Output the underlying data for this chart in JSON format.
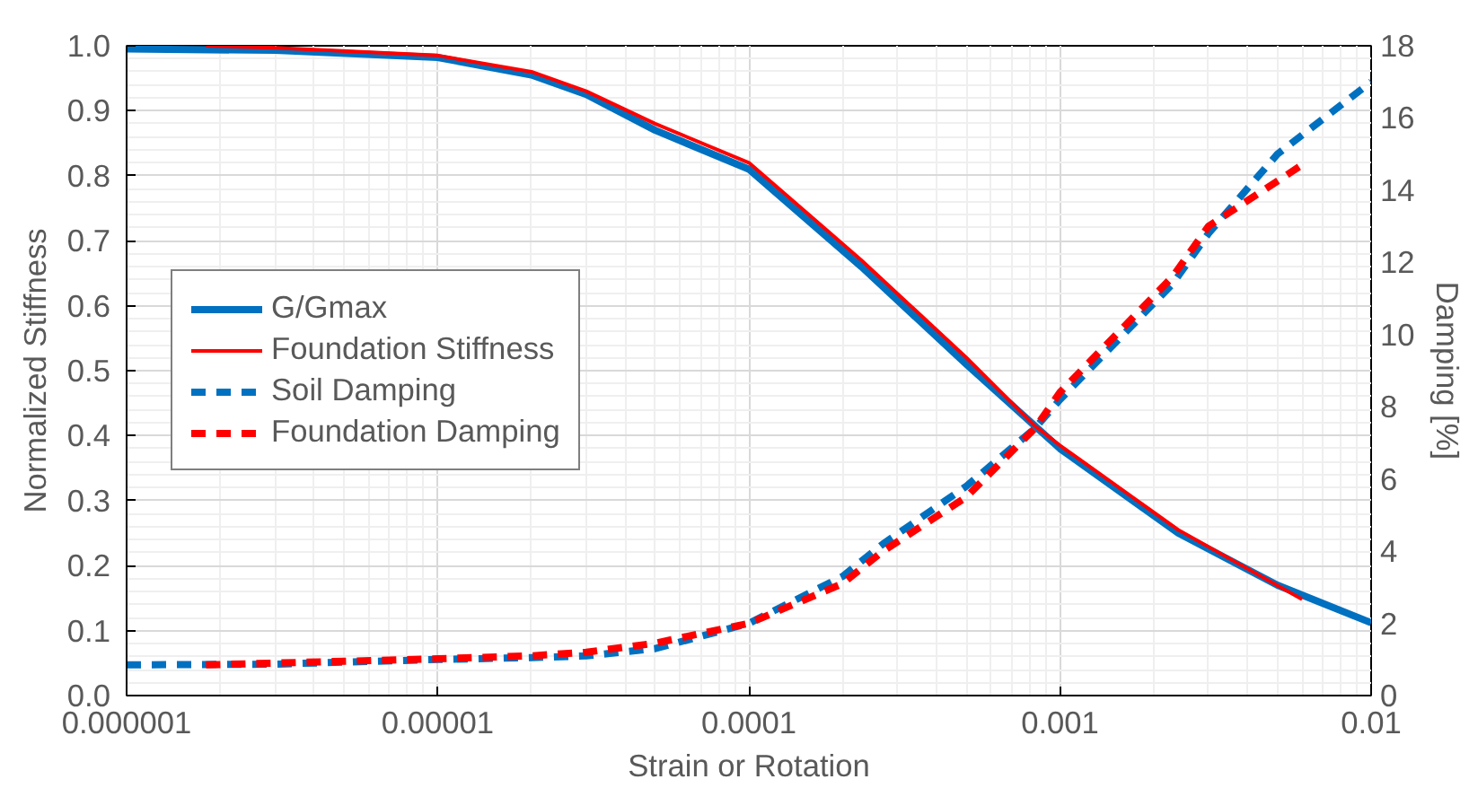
{
  "chart_data": {
    "type": "line",
    "xlabel": "Strain or Rotation",
    "ylabel": "Normalized Stiffness",
    "y2label": "Damping [%]",
    "log": "x",
    "grid": true,
    "legend": "left",
    "marker": "none",
    "xlim": [
      1e-06,
      0.01
    ],
    "xticks": [
      {
        "value": 1e-06,
        "label": "0.000001"
      },
      {
        "value": 1e-05,
        "label": "0.00001"
      },
      {
        "value": 0.0001,
        "label": "0.0001"
      },
      {
        "value": 0.001,
        "label": "0.001"
      },
      {
        "value": 0.01,
        "label": "0.01"
      }
    ],
    "ylim": [
      0,
      1
    ],
    "yticks": [
      {
        "value": 0,
        "label": "0.0"
      },
      0.1,
      0.2,
      0.3,
      0.4,
      0.5,
      0.6,
      0.7,
      0.8,
      0.9,
      {
        "value": 1,
        "label": "1.0"
      }
    ],
    "y2lim": [
      0,
      18
    ],
    "y2ticks": [
      0,
      2,
      4,
      6,
      8,
      10,
      12,
      14,
      16,
      18
    ],
    "series": [
      {
        "name": "G/Gmax",
        "color": "#0070c0",
        "line_style": "solid",
        "x": [
          1e-06,
          3e-06,
          1e-05,
          2e-05,
          3e-05,
          5e-05,
          0.0001,
          0.00023,
          0.0005,
          0.00083,
          0.001,
          0.0024,
          0.005,
          0.01
        ],
        "values": [
          0.995,
          0.993,
          0.982,
          0.955,
          0.925,
          0.87,
          0.81,
          0.66,
          0.51,
          0.415,
          0.38,
          0.25,
          0.17,
          0.112
        ]
      },
      {
        "name": "Foundation Stiffness",
        "color": "#ff0000",
        "line_style": "solid",
        "x": [
          1.8e-06,
          3e-06,
          1e-05,
          2e-05,
          3e-05,
          5e-05,
          0.0001,
          0.00023,
          0.0005,
          0.00083,
          0.001,
          0.0024,
          0.006
        ],
        "values": [
          1.0,
          0.997,
          0.985,
          0.96,
          0.93,
          0.88,
          0.82,
          0.67,
          0.52,
          0.415,
          0.385,
          0.255,
          0.148
        ]
      },
      {
        "name": "Soil Damping",
        "color": "#0070c0",
        "line_style": "dashed",
        "axis": "y2",
        "x": [
          1e-06,
          3e-06,
          1e-05,
          2e-05,
          3e-05,
          5e-05,
          0.0001,
          0.0002,
          0.00027,
          0.0005,
          0.00083,
          0.001,
          0.0023,
          0.003,
          0.005,
          0.01
        ],
        "values": [
          0.85,
          0.87,
          1.0,
          1.05,
          1.1,
          1.3,
          2.0,
          3.3,
          4.2,
          5.8,
          7.4,
          8.2,
          11.4,
          12.8,
          15.0,
          17.0
        ]
      },
      {
        "name": "Foundation Damping",
        "color": "#ff0000",
        "line_style": "dashed",
        "axis": "y2",
        "x": [
          1.8e-06,
          3e-06,
          1e-05,
          2e-05,
          3e-05,
          5e-05,
          0.0001,
          0.0002,
          0.00027,
          0.0005,
          0.00083,
          0.001,
          0.0023,
          0.003,
          0.006
        ],
        "values": [
          0.85,
          0.9,
          1.02,
          1.1,
          1.2,
          1.45,
          2.0,
          3.1,
          4.0,
          5.5,
          7.4,
          8.4,
          11.6,
          13.0,
          14.7
        ]
      }
    ]
  }
}
